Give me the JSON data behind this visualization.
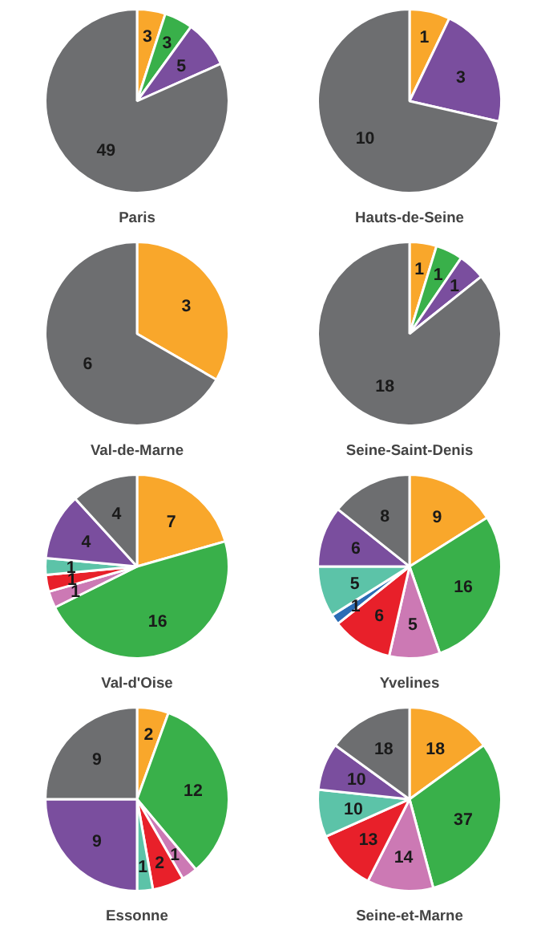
{
  "chart_data": [
    {
      "type": "pie",
      "title": "Paris",
      "categories": [
        null,
        null,
        null,
        null
      ],
      "values": [
        3,
        3,
        5,
        49
      ],
      "colors": [
        "#f9a72b",
        "#39b04a",
        "#7a4e9e",
        "#6d6e70"
      ],
      "data_labels": true
    },
    {
      "type": "pie",
      "title": "Hauts-de-Seine",
      "categories": [
        null,
        null,
        null
      ],
      "values": [
        1,
        3,
        10
      ],
      "colors": [
        "#f9a72b",
        "#7a4e9e",
        "#6d6e70"
      ],
      "data_labels": true
    },
    {
      "type": "pie",
      "title": "Val-de-Marne",
      "categories": [
        null,
        null
      ],
      "values": [
        3,
        6
      ],
      "colors": [
        "#f9a72b",
        "#6d6e70"
      ],
      "data_labels": true
    },
    {
      "type": "pie",
      "title": "Seine-Saint-Denis",
      "categories": [
        null,
        null,
        null,
        null
      ],
      "values": [
        1,
        1,
        1,
        18
      ],
      "colors": [
        "#f9a72b",
        "#39b04a",
        "#7a4e9e",
        "#6d6e70"
      ],
      "data_labels": true
    },
    {
      "type": "pie",
      "title": "Val-d'Oise",
      "categories": [
        null,
        null,
        null,
        null,
        null,
        null,
        null
      ],
      "values": [
        7,
        16,
        1,
        1,
        1,
        4,
        4
      ],
      "colors": [
        "#f9a72b",
        "#39b04a",
        "#cc79b4",
        "#e8202a",
        "#5cc3a8",
        "#7a4e9e",
        "#6d6e70"
      ],
      "data_labels": true
    },
    {
      "type": "pie",
      "title": "Yvelines",
      "categories": [
        null,
        null,
        null,
        null,
        null,
        null,
        null,
        null
      ],
      "values": [
        9,
        16,
        5,
        6,
        1,
        5,
        6,
        8
      ],
      "colors": [
        "#f9a72b",
        "#39b04a",
        "#cc79b4",
        "#e8202a",
        "#2a6cb5",
        "#5cc3a8",
        "#7a4e9e",
        "#6d6e70"
      ],
      "data_labels": true
    },
    {
      "type": "pie",
      "title": "Essonne",
      "categories": [
        null,
        null,
        null,
        null,
        null,
        null,
        null
      ],
      "values": [
        2,
        12,
        1,
        2,
        1,
        9,
        9
      ],
      "colors": [
        "#f9a72b",
        "#39b04a",
        "#cc79b4",
        "#e8202a",
        "#5cc3a8",
        "#7a4e9e",
        "#6d6e70"
      ],
      "data_labels": true
    },
    {
      "type": "pie",
      "title": "Seine-et-Marne",
      "categories": [
        null,
        null,
        null,
        null,
        null,
        null,
        null
      ],
      "values": [
        18,
        37,
        14,
        13,
        10,
        10,
        18
      ],
      "colors": [
        "#f9a72b",
        "#39b04a",
        "#cc79b4",
        "#e8202a",
        "#5cc3a8",
        "#7a4e9e",
        "#6d6e70"
      ],
      "data_labels": true
    }
  ]
}
